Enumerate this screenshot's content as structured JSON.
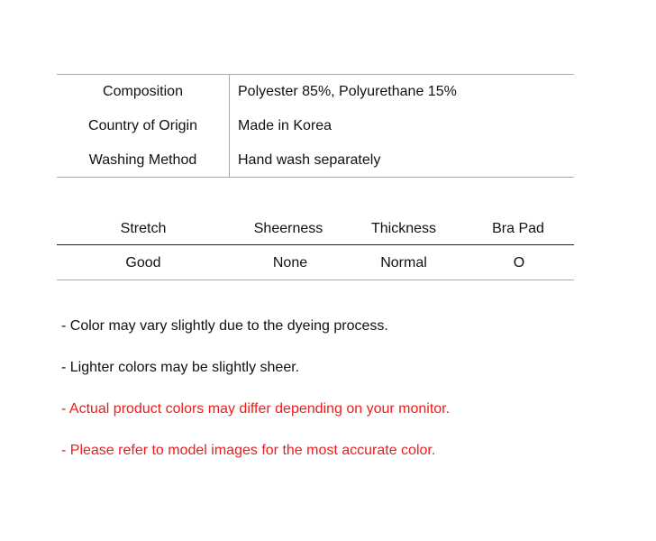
{
  "info_table": [
    {
      "label": "Composition",
      "value": "Polyester 85%, Polyurethane 15%"
    },
    {
      "label": "Country of Origin",
      "value": "Made in Korea"
    },
    {
      "label": "Washing Method",
      "value": "Hand wash separately"
    }
  ],
  "attributes": {
    "headers": [
      "Stretch",
      "Sheerness",
      "Thickness",
      "Bra Pad"
    ],
    "values": [
      "Good",
      "None",
      "Normal",
      "O"
    ]
  },
  "notes": [
    {
      "text": "- Color may vary slightly due to the dyeing process.",
      "color": "#111111"
    },
    {
      "text": "- Lighter colors may be slightly sheer.",
      "color": "#111111"
    },
    {
      "text": "- Actual product colors may differ depending on your monitor.",
      "color": "#ee1c1c"
    },
    {
      "text": "- Please refer to model images for the most accurate color.",
      "color": "#ee1c1c"
    }
  ]
}
